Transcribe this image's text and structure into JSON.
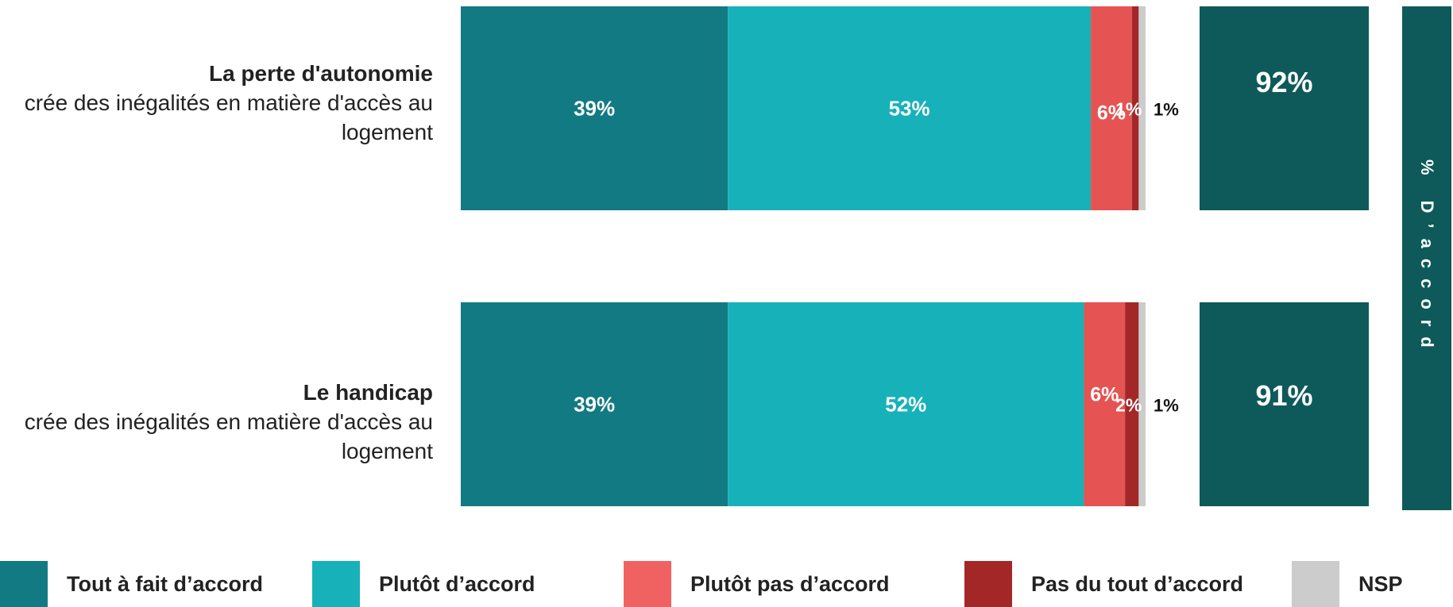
{
  "colors": {
    "tout_a_fait": "#127a82",
    "plutot": "#17b1b9",
    "plutot_pas": "#e55353",
    "pas_du_tout": "#a42727",
    "nsp": "#cccccc",
    "total": "#0e5a5a"
  },
  "side_label": "% D’accord",
  "legend": [
    {
      "label": "Tout à fait d’accord",
      "color": "#127a82"
    },
    {
      "label": "Plutôt d’accord",
      "color": "#17b1b9"
    },
    {
      "label": "Plutôt pas d’accord",
      "color": "#f06262"
    },
    {
      "label": "Pas du tout d’accord",
      "color": "#a42727"
    },
    {
      "label": "NSP",
      "color": "#cccccc"
    }
  ],
  "rows": [
    {
      "title": "La perte d'autonomie",
      "subtitle": "crée des inégalités en matière d'accès au logement"
    },
    {
      "title": "Le handicap",
      "subtitle": "crée des inégalités en matière d'accès au logement"
    }
  ],
  "chart_data": {
    "type": "bar",
    "orientation": "horizontal-stacked",
    "categories": [
      "La perte d'autonomie",
      "Le handicap"
    ],
    "series": [
      {
        "name": "Tout à fait d’accord",
        "values": [
          39,
          39
        ],
        "labels": [
          "39%",
          "39%"
        ]
      },
      {
        "name": "Plutôt d’accord",
        "values": [
          53,
          52
        ],
        "labels": [
          "53%",
          "52%"
        ]
      },
      {
        "name": "Plutôt pas d’accord",
        "values": [
          6,
          6
        ],
        "labels": [
          "6%",
          "6%"
        ]
      },
      {
        "name": "Pas du tout d’accord",
        "values": [
          1,
          2
        ],
        "labels": [
          "1%",
          "2%"
        ]
      },
      {
        "name": "NSP",
        "values": [
          1,
          1
        ],
        "labels": [
          "1%",
          "1%"
        ]
      }
    ],
    "totals": {
      "name": "% D’accord",
      "values": [
        92,
        91
      ],
      "labels": [
        "92%",
        "91%"
      ]
    },
    "xlim": [
      0,
      100
    ]
  }
}
